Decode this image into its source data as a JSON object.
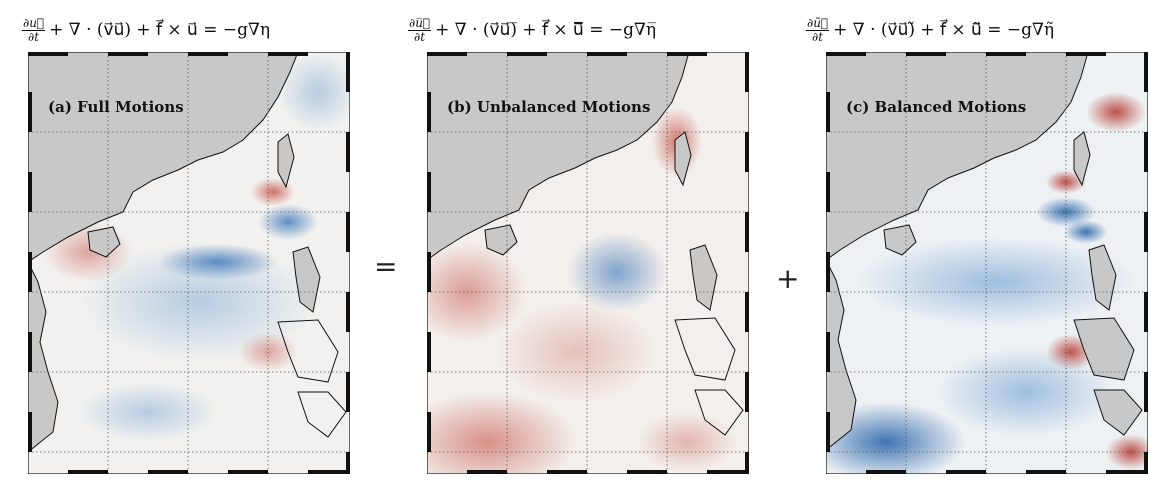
{
  "equations": {
    "a": {
      "num": "∂u⃗",
      "den": "∂t",
      "rest": "+ ∇ · (v⃗u⃗) + f⃗ × u⃗ = −g∇η"
    },
    "b": {
      "num": "∂u̅⃗",
      "den": "∂t",
      "rest": "+ ∇ · (v⃗u⃗)̅ + f⃗ × u⃗̅ = −g∇η̅"
    },
    "c": {
      "num": "∂ũ⃗",
      "den": "∂t",
      "rest": "+ ∇ · (v⃗u⃗)̃ + f⃗ × u⃗̃ = −g∇η̃"
    }
  },
  "panels": {
    "a": {
      "label": "(a) Full Motions"
    },
    "b": {
      "label": "(b) Unbalanced Motions"
    },
    "c": {
      "label": "(c) Balanced Motions"
    }
  },
  "operators": {
    "equals": "=",
    "plus": "+"
  },
  "colors": {
    "land": "#c8c8c8",
    "positive": "#c0392b",
    "negative": "#1f5fa8",
    "neutral": "#f4f1ee"
  }
}
